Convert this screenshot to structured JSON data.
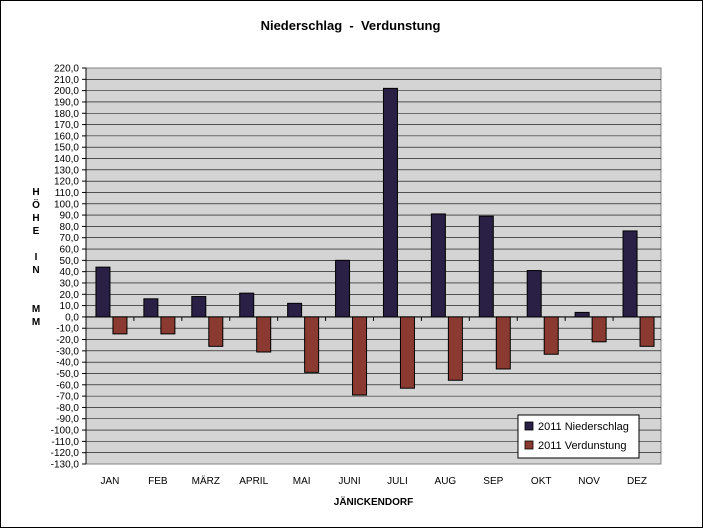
{
  "chart_data": {
    "type": "bar",
    "title": "Niederschlag  -  Verdunstung",
    "xlabel": "JÄNICKENDORF",
    "ylabel": "HÖHE IN MM",
    "ylabel_lines": [
      "H",
      "Ö",
      "H",
      "E",
      "",
      "I",
      "N",
      "",
      "",
      "M",
      "M"
    ],
    "categories": [
      "JAN",
      "FEB",
      "MÄRZ",
      "APRIL",
      "MAI",
      "JUNI",
      "JULI",
      "AUG",
      "SEP",
      "OKT",
      "NOV",
      "DEZ"
    ],
    "series": [
      {
        "name": "2011 Niederschlag",
        "color": "#2a1f45",
        "values": [
          44,
          16,
          18,
          21,
          12,
          50,
          202,
          91,
          89,
          41,
          4,
          76
        ]
      },
      {
        "name": "2011 Verdunstung",
        "color": "#8a3a30",
        "values": [
          -15,
          -15,
          -26,
          -31,
          -49,
          -69,
          -63,
          -56,
          -46,
          -33,
          -22,
          -26
        ]
      }
    ],
    "ylim": [
      -130,
      220
    ],
    "ytick_step": 10,
    "ytick_labels": [
      "220,0",
      "210,0",
      "200,0",
      "190,0",
      "180,0",
      "170,0",
      "160,0",
      "150,0",
      "140,0",
      "130,0",
      "120,0",
      "110,0",
      "100,0",
      "90,0",
      "80,0",
      "70,0",
      "60,0",
      "50,0",
      "40,0",
      "30,0",
      "20,0",
      "10,0",
      "0,0",
      "-10,0",
      "-20,0",
      "-30,0",
      "-40,0",
      "-50,0",
      "-60,0",
      "-70,0",
      "-80,0",
      "-90,0",
      "-100,0",
      "-110,0",
      "-120,0",
      "-130,0"
    ],
    "grid": true,
    "plot_background": "#d4d4d4",
    "legend_position": "bottom-right"
  }
}
